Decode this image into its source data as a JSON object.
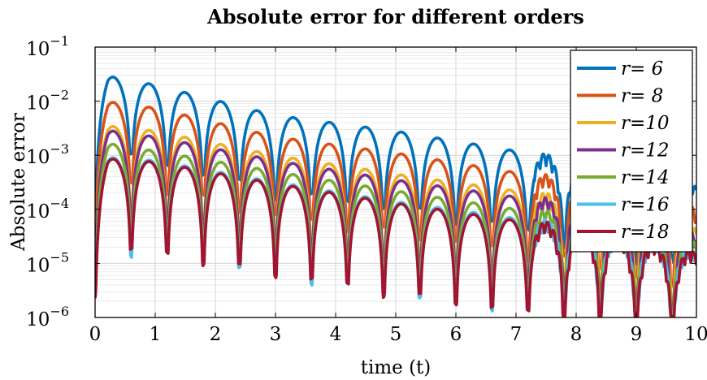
{
  "chart_data": {
    "type": "line",
    "title": "Absolute error for different orders",
    "xlabel": "time (t)",
    "ylabel": "Absolute error",
    "xlim": [
      0,
      10
    ],
    "ylim": [
      1e-06,
      0.1
    ],
    "yscale": "log",
    "grid": true,
    "legend_position": "top-right",
    "x_ticks": [
      "0",
      "1",
      "2",
      "3",
      "4",
      "5",
      "6",
      "7",
      "8",
      "9",
      "10"
    ],
    "y_ticks": [
      {
        "base": "10",
        "exp": "−1",
        "value": 0.1
      },
      {
        "base": "10",
        "exp": "−2",
        "value": 0.01
      },
      {
        "base": "10",
        "exp": "−3",
        "value": 0.001
      },
      {
        "base": "10",
        "exp": "−4",
        "value": 0.0001
      },
      {
        "base": "10",
        "exp": "−5",
        "value": 1e-05
      },
      {
        "base": "10",
        "exp": "−6",
        "value": 1e-06
      }
    ],
    "oscillation_period": 0.6,
    "series": [
      {
        "name": "r= 6",
        "color": "#0072BD",
        "peaks": [
          [
            0.3,
            0.028
          ],
          [
            1.0,
            0.02
          ],
          [
            3.0,
            0.0055
          ],
          [
            5.0,
            0.0028
          ],
          [
            7.0,
            0.0012
          ],
          [
            8.2,
            0.0006
          ],
          [
            10.0,
            0.00025
          ]
        ],
        "trough_ratio": 0.045
      },
      {
        "name": "r= 8",
        "color": "#D95319",
        "peaks": [
          [
            0.3,
            0.0095
          ],
          [
            1.0,
            0.0075
          ],
          [
            3.0,
            0.0022
          ],
          [
            5.0,
            0.0011
          ],
          [
            7.0,
            0.00048
          ],
          [
            8.2,
            0.00025
          ],
          [
            10.0,
            9e-05
          ]
        ],
        "trough_ratio": 0.04
      },
      {
        "name": "r=10",
        "color": "#EDB120",
        "peaks": [
          [
            0.3,
            0.0034
          ],
          [
            1.0,
            0.0028
          ],
          [
            3.0,
            0.001
          ],
          [
            5.0,
            0.00045
          ],
          [
            7.0,
            0.00022
          ],
          [
            8.2,
            0.00012
          ],
          [
            10.0,
            4e-05
          ]
        ],
        "trough_ratio": 0.035
      },
      {
        "name": "r=12",
        "color": "#7E2F8E",
        "peaks": [
          [
            0.3,
            0.0028
          ],
          [
            1.0,
            0.0022
          ],
          [
            3.0,
            0.0008
          ],
          [
            5.0,
            0.00035
          ],
          [
            7.0,
            0.00017
          ],
          [
            8.2,
            0.0001
          ],
          [
            10.0,
            3e-05
          ]
        ],
        "trough_ratio": 0.03
      },
      {
        "name": "r=14",
        "color": "#77AC30",
        "peaks": [
          [
            0.3,
            0.0016
          ],
          [
            1.0,
            0.0012
          ],
          [
            3.0,
            0.0005
          ],
          [
            5.0,
            0.00022
          ],
          [
            7.0,
            0.0001
          ],
          [
            8.2,
            6e-05
          ],
          [
            10.0,
            2.2e-05
          ]
        ],
        "trough_ratio": 0.028
      },
      {
        "name": "r=16",
        "color": "#4DBEEE",
        "peaks": [
          [
            0.3,
            0.0009
          ],
          [
            1.0,
            0.0008
          ],
          [
            3.0,
            0.00032
          ],
          [
            5.0,
            0.00014
          ],
          [
            7.0,
            6.8e-05
          ],
          [
            8.2,
            4e-05
          ],
          [
            10.0,
            1.6e-05
          ]
        ],
        "trough_ratio": 0.025
      },
      {
        "name": "r=18",
        "color": "#A2142F",
        "peaks": [
          [
            0.3,
            0.00085
          ],
          [
            1.0,
            0.00075
          ],
          [
            3.0,
            0.0003
          ],
          [
            5.0,
            0.00013
          ],
          [
            7.0,
            6.2e-05
          ],
          [
            8.2,
            3.6e-05
          ],
          [
            10.0,
            1.4e-05
          ]
        ],
        "trough_ratio": 0.025
      }
    ]
  }
}
